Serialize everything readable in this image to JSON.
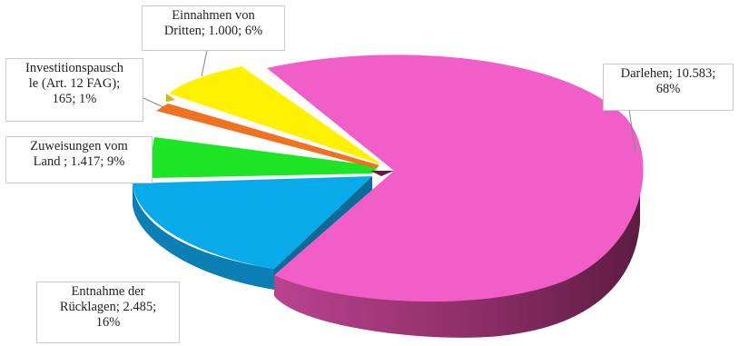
{
  "chart_data": {
    "type": "pie",
    "style": "3d-exploded",
    "slices": [
      {
        "label": "Darlehen",
        "value": 10583,
        "percent": 68,
        "color": "#f25ec7",
        "label_lines": [
          "Darlehen; 10.583;",
          "68%"
        ]
      },
      {
        "label": "Entnahme der Rücklagen",
        "value": 2485,
        "percent": 16,
        "color": "#08aaea",
        "label_lines": [
          "Entnahme der",
          "Rücklagen; 2.485;",
          "16%"
        ]
      },
      {
        "label": "Zuweisungen vom Land",
        "value": 1417,
        "percent": 9,
        "color": "#1de525",
        "label_lines": [
          "Zuweisungen vom",
          "Land ; 1.417; 9%"
        ]
      },
      {
        "label": "Investitionspauschale (Art. 12 FAG)",
        "value": 165,
        "percent": 1,
        "color": "#f0711f",
        "label_lines": [
          "Investitionspausch",
          "le (Art. 12 FAG);",
          "165; 1%"
        ]
      },
      {
        "label": "Einnahmen von Dritten",
        "value": 1000,
        "percent": 6,
        "color": "#fff200",
        "label_lines": [
          "Einnahmen von",
          "Dritten; 1.000; 6%"
        ]
      }
    ],
    "legend": "none"
  }
}
